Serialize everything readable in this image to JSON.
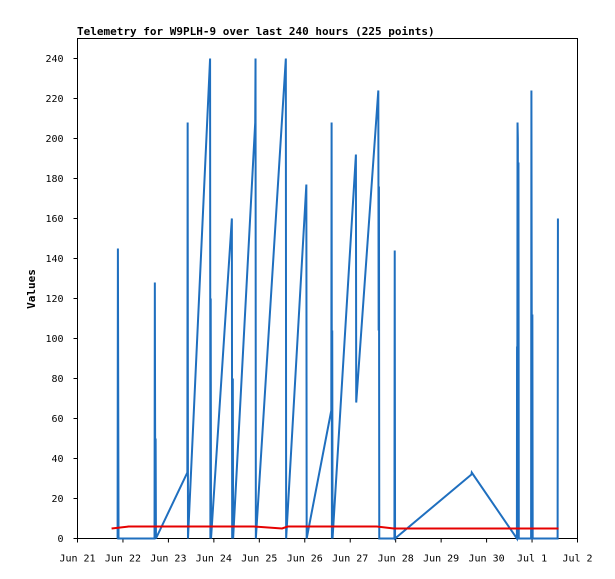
{
  "chart_data": {
    "type": "line",
    "title": "Telemetry for W9PLH-9 over last 240 hours (225 points)",
    "ylabel": "Values",
    "xlabel": "",
    "xlim": [
      "Jun 21",
      "Jul 2"
    ],
    "ylim": [
      0,
      250
    ],
    "grid": false,
    "legend": "none",
    "x_ticks": [
      "Jun 21",
      "Jun 22",
      "Jun 23",
      "Jun 24",
      "Jun 25",
      "Jun 26",
      "Jun 27",
      "Jun 28",
      "Jun 29",
      "Jun 30",
      "Jul 1",
      "Jul 2"
    ],
    "y_ticks": [
      0,
      20,
      40,
      60,
      80,
      100,
      120,
      140,
      160,
      180,
      200,
      220,
      240
    ],
    "colors": {
      "blue_series": "#1f6fbf",
      "red_series": "#e60000",
      "axis": "#000000"
    },
    "series": [
      {
        "color": "blue",
        "points": [
          [
            "Jun 21 21:00",
            0
          ],
          [
            "Jun 21 21:10",
            0
          ],
          [
            "Jun 21 21:20",
            145
          ],
          [
            "Jun 21 21:40",
            0
          ],
          [
            "Jun 22 16:40",
            0
          ],
          [
            "Jun 22 16:50",
            128
          ],
          [
            "Jun 22 17:05",
            0
          ],
          [
            "Jun 22 17:15",
            50
          ],
          [
            "Jun 22 17:25",
            0
          ],
          [
            "Jun 23 10:00",
            33
          ],
          [
            "Jun 23 10:10",
            208
          ],
          [
            "Jun 23 10:20",
            0
          ],
          [
            "Jun 23 22:00",
            240
          ],
          [
            "Jun 23 22:10",
            0
          ],
          [
            "Jun 23 22:20",
            120
          ],
          [
            "Jun 23 22:30",
            0
          ],
          [
            "Jun 24 09:30",
            160
          ],
          [
            "Jun 24 09:40",
            0
          ],
          [
            "Jun 24 10:00",
            80
          ],
          [
            "Jun 24 10:10",
            0
          ],
          [
            "Jun 24 21:50",
            208
          ],
          [
            "Jun 24 22:00",
            240
          ],
          [
            "Jun 24 22:10",
            0
          ],
          [
            "Jun 25 14:00",
            240
          ],
          [
            "Jun 25 14:10",
            0
          ],
          [
            "Jun 26 00:50",
            177
          ],
          [
            "Jun 26 01:00",
            0
          ],
          [
            "Jun 26 14:00",
            64
          ],
          [
            "Jun 26 14:10",
            208
          ],
          [
            "Jun 26 14:20",
            0
          ],
          [
            "Jun 26 14:30",
            104
          ],
          [
            "Jun 26 14:40",
            0
          ],
          [
            "Jun 27 03:00",
            192
          ],
          [
            "Jun 27 03:10",
            68
          ],
          [
            "Jun 27 14:50",
            224
          ],
          [
            "Jun 27 15:00",
            104
          ],
          [
            "Jun 27 15:10",
            176
          ],
          [
            "Jun 27 15:20",
            0
          ],
          [
            "Jun 27 23:20",
            0
          ],
          [
            "Jun 27 23:30",
            144
          ],
          [
            "Jun 27 23:40",
            0
          ],
          [
            "Jun 29 16:00",
            32
          ],
          [
            "Jun 29 16:10",
            33
          ],
          [
            "Jun 30 16:00",
            0
          ],
          [
            "Jun 30 16:05",
            96
          ],
          [
            "Jun 30 16:10",
            0
          ],
          [
            "Jun 30 16:20",
            208
          ],
          [
            "Jun 30 16:30",
            200
          ],
          [
            "Jun 30 16:40",
            0
          ],
          [
            "Jun 30 16:50",
            188
          ],
          [
            "Jun 30 17:00",
            0
          ],
          [
            "Jun 30 23:30",
            0
          ],
          [
            "Jun 30 23:40",
            224
          ],
          [
            "Jul 1 00:00",
            0
          ],
          [
            "Jul 1 00:10",
            112
          ],
          [
            "Jul 1 00:20",
            0
          ],
          [
            "Jul 1 13:30",
            0
          ],
          [
            "Jul 1 13:40",
            160
          ]
        ]
      },
      {
        "color": "red",
        "points": [
          [
            "Jun 21 18:00",
            5
          ],
          [
            "Jun 22 03:00",
            6
          ],
          [
            "Jun 24 21:00",
            6
          ],
          [
            "Jun 25 12:00",
            5
          ],
          [
            "Jun 25 15:00",
            6
          ],
          [
            "Jun 27 14:00",
            6
          ],
          [
            "Jun 27 23:00",
            5
          ],
          [
            "Jun 28 02:00",
            5
          ],
          [
            "Jul 1 14:00",
            5
          ]
        ]
      }
    ]
  }
}
